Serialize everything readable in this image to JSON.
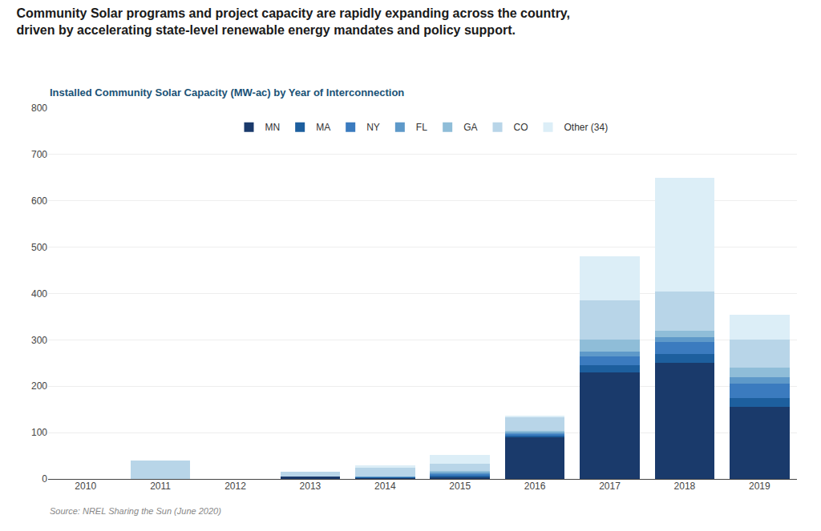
{
  "chart_data": {
    "type": "bar",
    "title": "Community Solar programs and project capacity are rapidly expanding across the country,\ndriven by accelerating state-level renewable energy mandates and policy support.",
    "subtitle": "Installed Community Solar Capacity (MW-ac) by Year of Interconnection",
    "annotations": [
      "Source: NREL Sharing the Sun (June 2020)"
    ],
    "categories": [
      "2010",
      "2011",
      "2012",
      "2013",
      "2014",
      "2015",
      "2016",
      "2017",
      "2018",
      "2019"
    ],
    "series": [
      {
        "name": "MN",
        "color": "#1a3a6b",
        "values": [
          0,
          0,
          0,
          5,
          2,
          5,
          90,
          230,
          250,
          155
        ]
      },
      {
        "name": "MA",
        "color": "#1d5f9e",
        "values": [
          0,
          0,
          0,
          0,
          2,
          3,
          5,
          15,
          20,
          20
        ]
      },
      {
        "name": "NY",
        "color": "#3b7bbf",
        "values": [
          0,
          0,
          0,
          0,
          0,
          3,
          3,
          20,
          25,
          30
        ]
      },
      {
        "name": "FL",
        "color": "#5e99c9",
        "values": [
          0,
          0,
          0,
          0,
          2,
          3,
          3,
          10,
          10,
          15
        ]
      },
      {
        "name": "GA",
        "color": "#8fbdd8",
        "values": [
          0,
          0,
          0,
          0,
          0,
          3,
          3,
          25,
          15,
          20
        ]
      },
      {
        "name": "CO",
        "color": "#b8d5e8",
        "values": [
          0,
          40,
          0,
          10,
          18,
          15,
          30,
          85,
          85,
          60
        ]
      },
      {
        "name": "Other (34)",
        "color": "#dceef7",
        "values": [
          0,
          0,
          0,
          0,
          5,
          20,
          2,
          95,
          245,
          55
        ]
      }
    ],
    "stacked": true,
    "ylim": [
      0,
      800
    ],
    "yticks": [
      0,
      100,
      200,
      300,
      400,
      500,
      600,
      700,
      800
    ],
    "grid": true,
    "legend": "upper center"
  }
}
